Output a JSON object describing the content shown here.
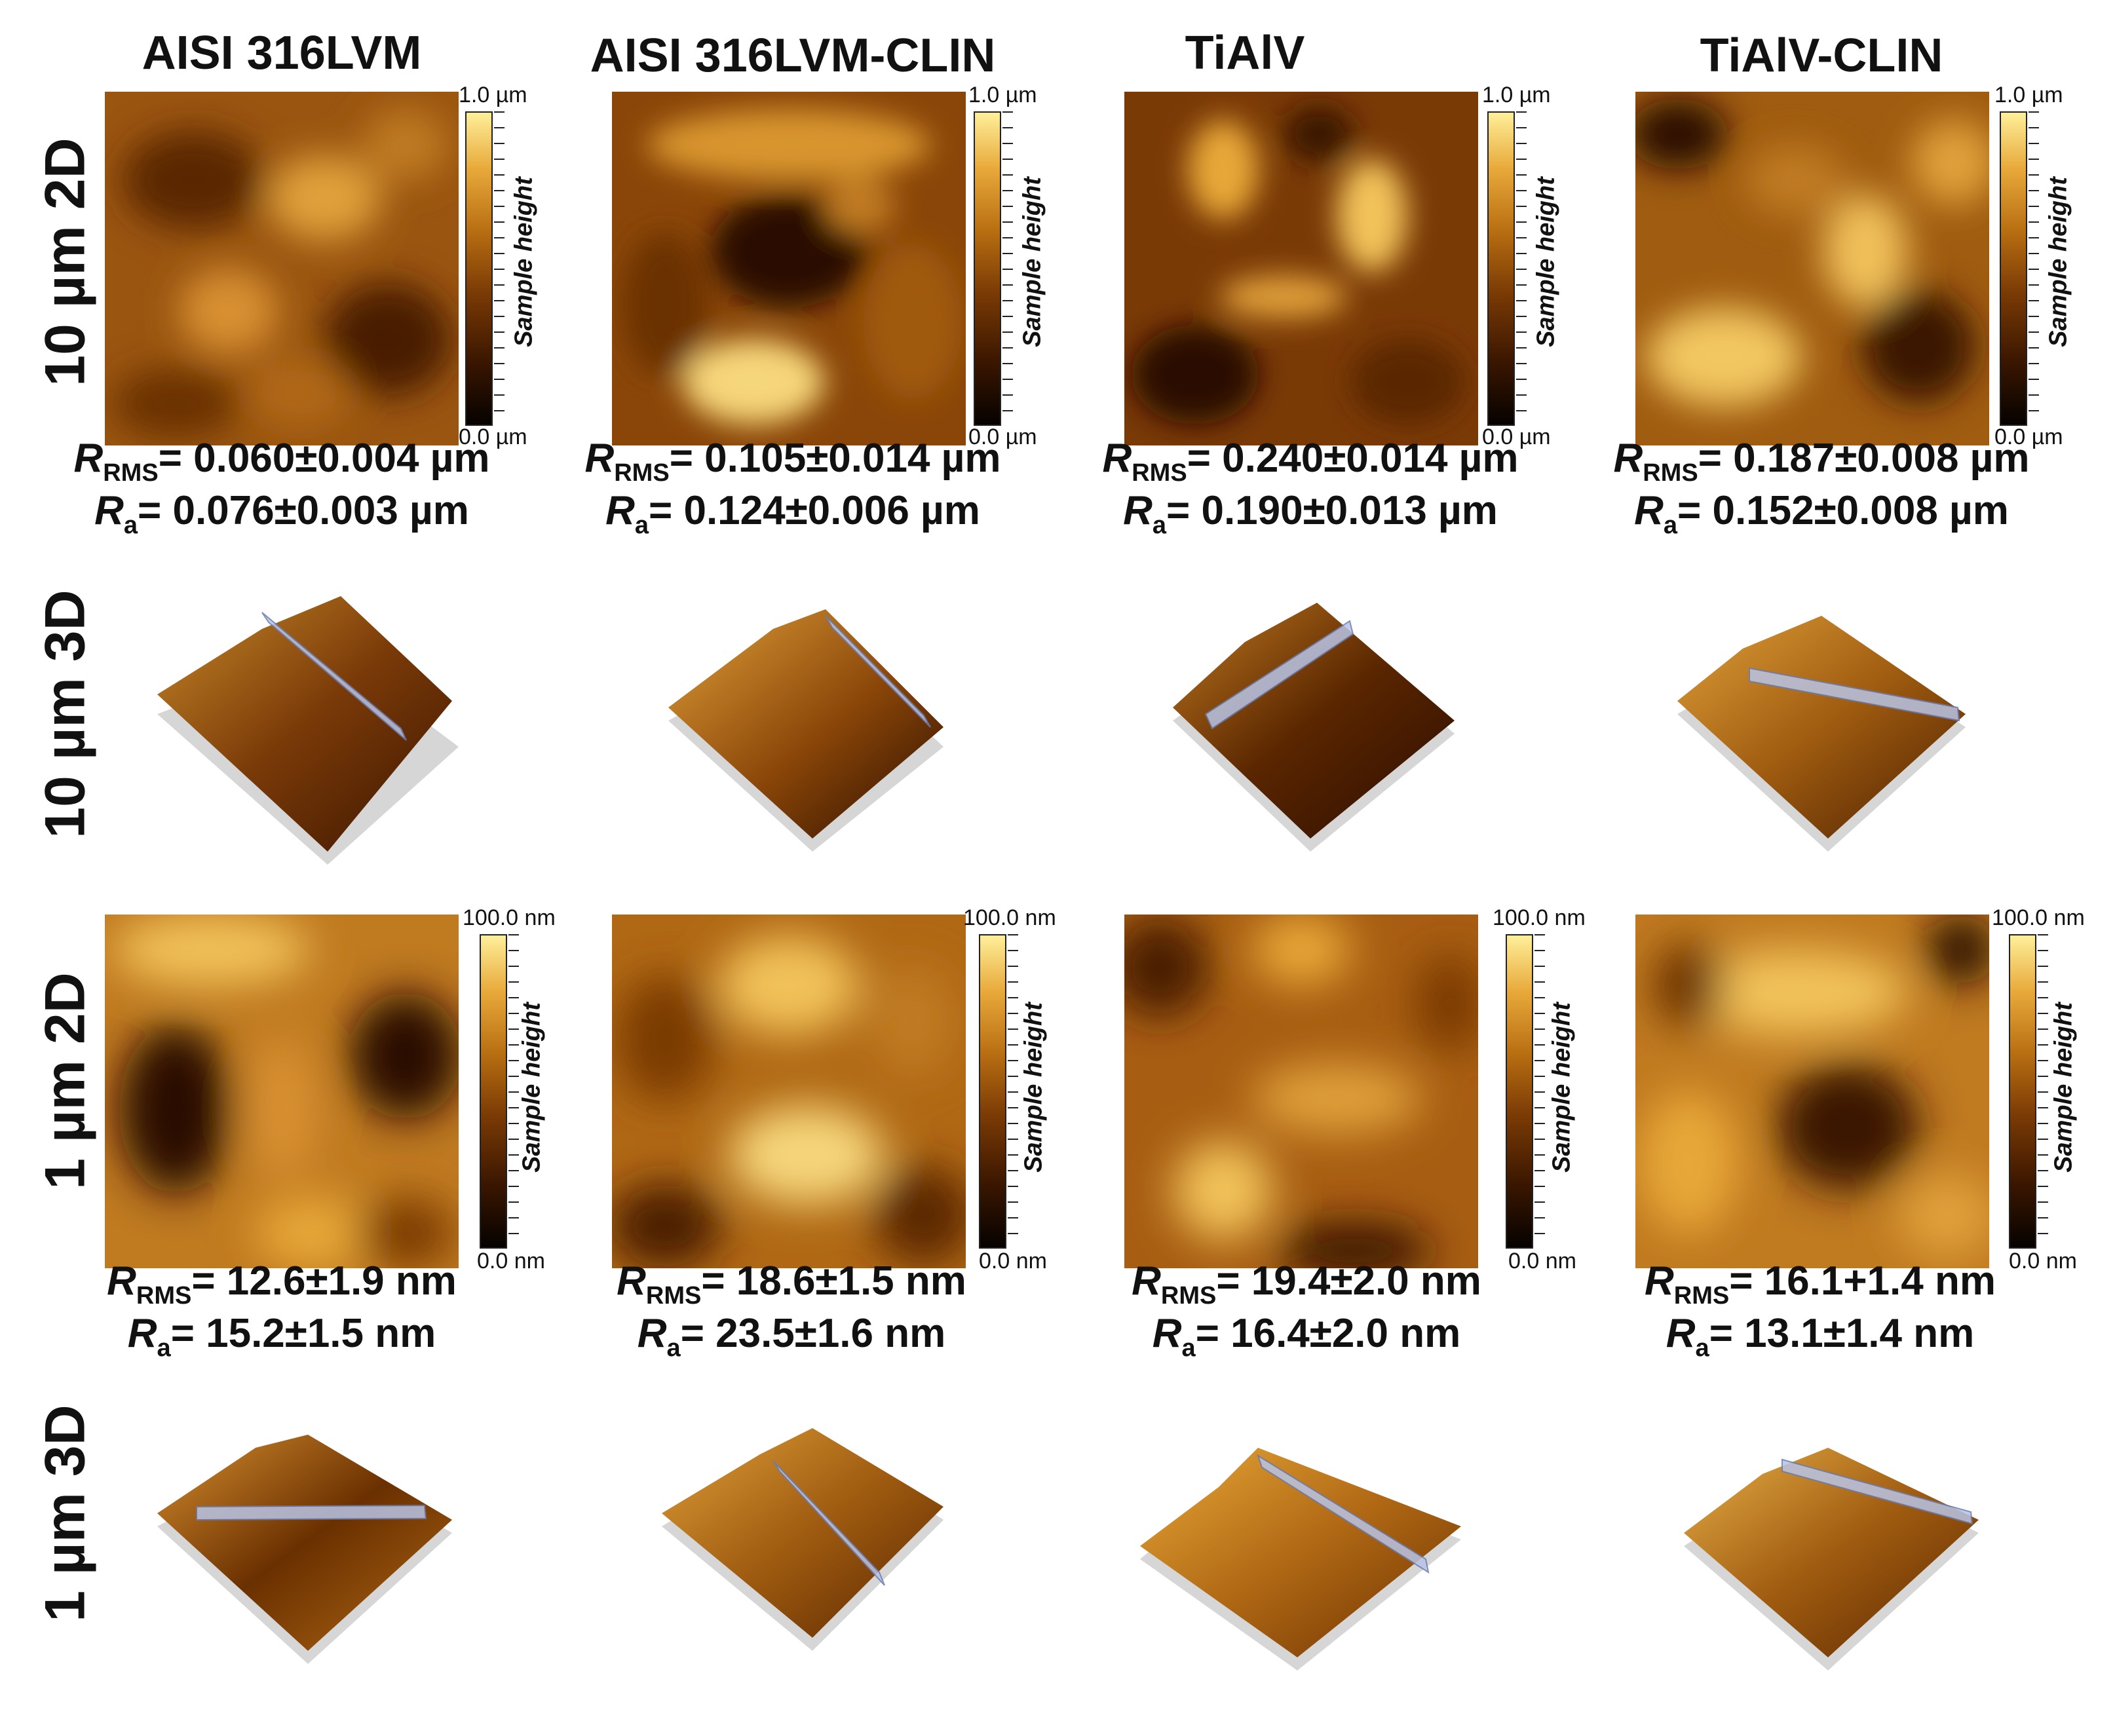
{
  "columns": [
    {
      "title": "AISI 316LVM"
    },
    {
      "title": "AISI 316LVM-CLIN"
    },
    {
      "title": "TiAlV"
    },
    {
      "title": "TiAlV-CLIN"
    }
  ],
  "rows": {
    "r10_2d": "10 µm 2D",
    "r10_3d": "10 µm 3D",
    "r1_2d": "1 µm 2D",
    "r1_3d": "1 µm 3D"
  },
  "colorbar": {
    "title": "Sample height",
    "scale10_max": "1.0 µm",
    "scale10_min": "0.0 µm",
    "scale1_max": "100.0 nm",
    "scale1_min": "0.0 nm"
  },
  "symbols": {
    "r": "R",
    "rms_sub": "RMS",
    "a_sub": "a"
  },
  "stats10": [
    {
      "rms": "= 0.060±0.004 µm",
      "ra": "= 0.076±0.003 µm"
    },
    {
      "rms": "= 0.105±0.014 µm",
      "ra": "= 0.124±0.006 µm"
    },
    {
      "rms": "= 0.240±0.014 µm",
      "ra": "= 0.190±0.013 µm"
    },
    {
      "rms": "= 0.187±0.008 µm",
      "ra": "= 0.152±0.008 µm"
    }
  ],
  "stats1": [
    {
      "rms": "= 12.6±1.9 nm",
      "ra": "= 15.2±1.5 nm"
    },
    {
      "rms": "= 18.6±1.5 nm",
      "ra": "= 23.5±1.6 nm"
    },
    {
      "rms": "= 19.4±2.0 nm",
      "ra": "= 16.4±2.0 nm"
    },
    {
      "rms": "= 16.1+1.4 nm",
      "ra": "= 13.1±1.4 nm"
    }
  ],
  "colors": {
    "deep": "#1e0800",
    "dark": "#5a2600",
    "mid": "#b06410",
    "light": "#e8a838",
    "bright": "#fde9a0"
  }
}
